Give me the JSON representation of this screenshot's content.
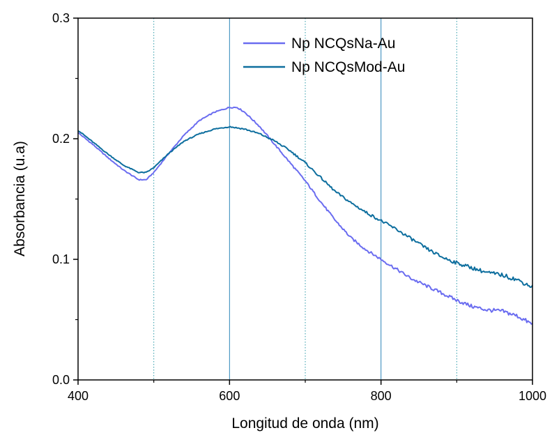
{
  "chart_data": {
    "type": "line",
    "xlabel": "Longitud de onda (nm)",
    "ylabel": "Absorbancia (u.a)",
    "xlim": [
      400,
      1000
    ],
    "ylim": [
      0.0,
      0.3
    ],
    "xticks": [
      400,
      600,
      800,
      1000
    ],
    "xtick_labels": [
      "400",
      "600",
      "800",
      "1000"
    ],
    "yticks": [
      0.0,
      0.1,
      0.2,
      0.3
    ],
    "ytick_labels": [
      "0.0",
      "0.1",
      "0.2",
      "0.3"
    ],
    "grid": {
      "major_x": [
        600,
        800
      ],
      "minor_x": [
        500,
        700,
        900
      ]
    },
    "legend_position": "top-right",
    "series": [
      {
        "name": "Np NCQsNa-Au",
        "color": "#6a6cf0",
        "x": [
          400,
          420,
          440,
          460,
          480,
          490,
          500,
          520,
          540,
          560,
          580,
          600,
          610,
          620,
          640,
          660,
          680,
          700,
          720,
          740,
          760,
          780,
          800,
          820,
          840,
          860,
          880,
          900,
          920,
          940,
          960,
          980,
          1000
        ],
        "y": [
          0.205,
          0.195,
          0.184,
          0.174,
          0.166,
          0.166,
          0.172,
          0.188,
          0.203,
          0.215,
          0.222,
          0.226,
          0.226,
          0.222,
          0.21,
          0.195,
          0.18,
          0.165,
          0.148,
          0.132,
          0.118,
          0.108,
          0.1,
          0.092,
          0.084,
          0.078,
          0.072,
          0.066,
          0.061,
          0.058,
          0.057,
          0.053,
          0.046
        ]
      },
      {
        "name": "Np NCQsMod-Au",
        "color": "#0d6e9e",
        "x": [
          400,
          420,
          440,
          460,
          480,
          490,
          500,
          520,
          540,
          560,
          580,
          600,
          620,
          640,
          660,
          680,
          700,
          720,
          740,
          760,
          780,
          800,
          820,
          840,
          860,
          880,
          900,
          920,
          940,
          960,
          980,
          1000
        ],
        "y": [
          0.207,
          0.197,
          0.187,
          0.178,
          0.172,
          0.172,
          0.176,
          0.188,
          0.198,
          0.204,
          0.208,
          0.21,
          0.208,
          0.204,
          0.198,
          0.19,
          0.18,
          0.168,
          0.156,
          0.147,
          0.139,
          0.132,
          0.125,
          0.117,
          0.109,
          0.102,
          0.097,
          0.093,
          0.089,
          0.087,
          0.083,
          0.077
        ]
      }
    ]
  }
}
